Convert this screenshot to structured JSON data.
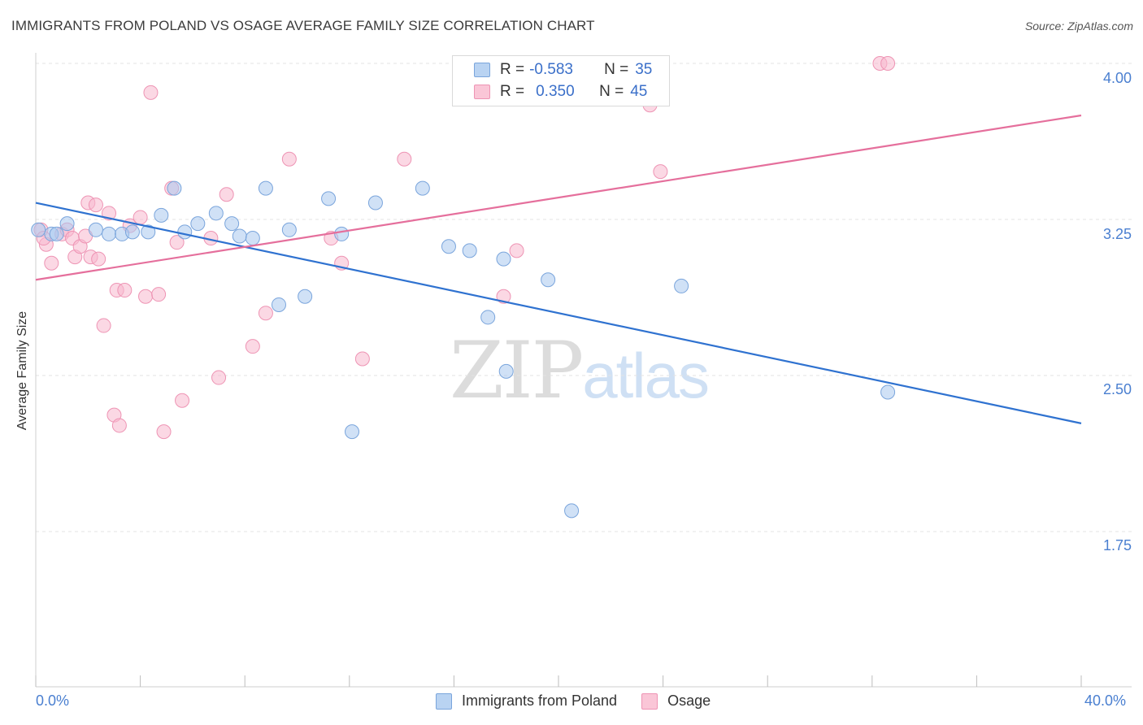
{
  "title": "IMMIGRANTS FROM POLAND VS OSAGE AVERAGE FAMILY SIZE CORRELATION CHART",
  "source": "Source: ZipAtlas.com",
  "watermark": {
    "zip": "ZIP",
    "atlas": "atlas"
  },
  "legend": {
    "series1": {
      "r_label": "R =",
      "r_value": "-0.583",
      "n_label": "N =",
      "n_value": "35"
    },
    "series2": {
      "r_label": "R =",
      "r_value": "0.350",
      "n_label": "N =",
      "n_value": "45"
    }
  },
  "chart_data": {
    "type": "scatter",
    "title": "IMMIGRANTS FROM POLAND VS OSAGE AVERAGE FAMILY SIZE CORRELATION CHART",
    "xlabel": "",
    "ylabel": "Average Family Size",
    "xlim": [
      0,
      40
    ],
    "ylim": [
      1.2,
      4.2
    ],
    "x_tick_labels": [
      "0.0%",
      "40.0%"
    ],
    "y_ticks": [
      1.75,
      2.5,
      3.25,
      4.0
    ],
    "y_tick_labels": [
      "1.75",
      "2.50",
      "3.25",
      "4.00"
    ],
    "grid": true,
    "legend_position": "bottom",
    "series": [
      {
        "name": "Immigrants from Poland",
        "color": "#a9c8ee",
        "edge_color": "#7aa5dc",
        "line_color": "#2f72d0",
        "trend": {
          "x": [
            0,
            40
          ],
          "y": [
            3.33,
            2.27
          ]
        },
        "points": [
          [
            0.1,
            3.2
          ],
          [
            0.6,
            3.18
          ],
          [
            0.8,
            3.18
          ],
          [
            1.2,
            3.23
          ],
          [
            2.3,
            3.2
          ],
          [
            2.8,
            3.18
          ],
          [
            3.3,
            3.18
          ],
          [
            3.7,
            3.19
          ],
          [
            4.3,
            3.19
          ],
          [
            4.8,
            3.27
          ],
          [
            5.3,
            3.4
          ],
          [
            5.7,
            3.19
          ],
          [
            6.2,
            3.23
          ],
          [
            6.9,
            3.28
          ],
          [
            7.5,
            3.23
          ],
          [
            7.8,
            3.17
          ],
          [
            8.3,
            3.16
          ],
          [
            8.8,
            3.4
          ],
          [
            9.3,
            2.84
          ],
          [
            9.7,
            3.2
          ],
          [
            10.3,
            2.88
          ],
          [
            11.2,
            3.35
          ],
          [
            11.7,
            3.18
          ],
          [
            12.1,
            2.23
          ],
          [
            13.0,
            3.33
          ],
          [
            14.8,
            3.4
          ],
          [
            15.8,
            3.12
          ],
          [
            16.6,
            3.1
          ],
          [
            17.3,
            2.78
          ],
          [
            17.9,
            3.06
          ],
          [
            18.0,
            2.52
          ],
          [
            19.6,
            2.96
          ],
          [
            20.5,
            1.85
          ],
          [
            24.7,
            2.93
          ],
          [
            32.6,
            2.42
          ]
        ]
      },
      {
        "name": "Osage",
        "color": "#f7b8cd",
        "edge_color": "#ee94b4",
        "line_color": "#e56f9c",
        "trend": {
          "x": [
            0,
            40
          ],
          "y": [
            2.96,
            3.75
          ]
        },
        "points": [
          [
            0.2,
            3.2
          ],
          [
            0.4,
            3.13
          ],
          [
            0.6,
            3.04
          ],
          [
            1.0,
            3.18
          ],
          [
            1.2,
            3.2
          ],
          [
            1.4,
            3.16
          ],
          [
            1.5,
            3.07
          ],
          [
            1.7,
            3.12
          ],
          [
            1.9,
            3.17
          ],
          [
            2.0,
            3.33
          ],
          [
            2.1,
            3.07
          ],
          [
            2.3,
            3.32
          ],
          [
            2.4,
            3.06
          ],
          [
            2.6,
            2.74
          ],
          [
            2.8,
            3.28
          ],
          [
            3.0,
            2.31
          ],
          [
            3.1,
            2.91
          ],
          [
            3.2,
            2.26
          ],
          [
            3.4,
            2.91
          ],
          [
            3.6,
            3.22
          ],
          [
            4.0,
            3.26
          ],
          [
            4.2,
            2.88
          ],
          [
            4.4,
            3.86
          ],
          [
            4.7,
            2.89
          ],
          [
            4.9,
            2.23
          ],
          [
            5.2,
            3.4
          ],
          [
            5.4,
            3.14
          ],
          [
            5.6,
            2.38
          ],
          [
            6.7,
            3.16
          ],
          [
            7.0,
            2.49
          ],
          [
            7.3,
            3.37
          ],
          [
            8.3,
            2.64
          ],
          [
            8.8,
            2.8
          ],
          [
            9.7,
            3.54
          ],
          [
            11.3,
            3.16
          ],
          [
            11.7,
            3.04
          ],
          [
            12.5,
            2.58
          ],
          [
            14.1,
            3.54
          ],
          [
            17.9,
            2.88
          ],
          [
            18.4,
            3.1
          ],
          [
            23.5,
            3.8
          ],
          [
            23.9,
            3.48
          ],
          [
            32.3,
            4.0
          ],
          [
            32.6,
            4.0
          ],
          [
            0.3,
            3.16
          ]
        ]
      }
    ]
  }
}
